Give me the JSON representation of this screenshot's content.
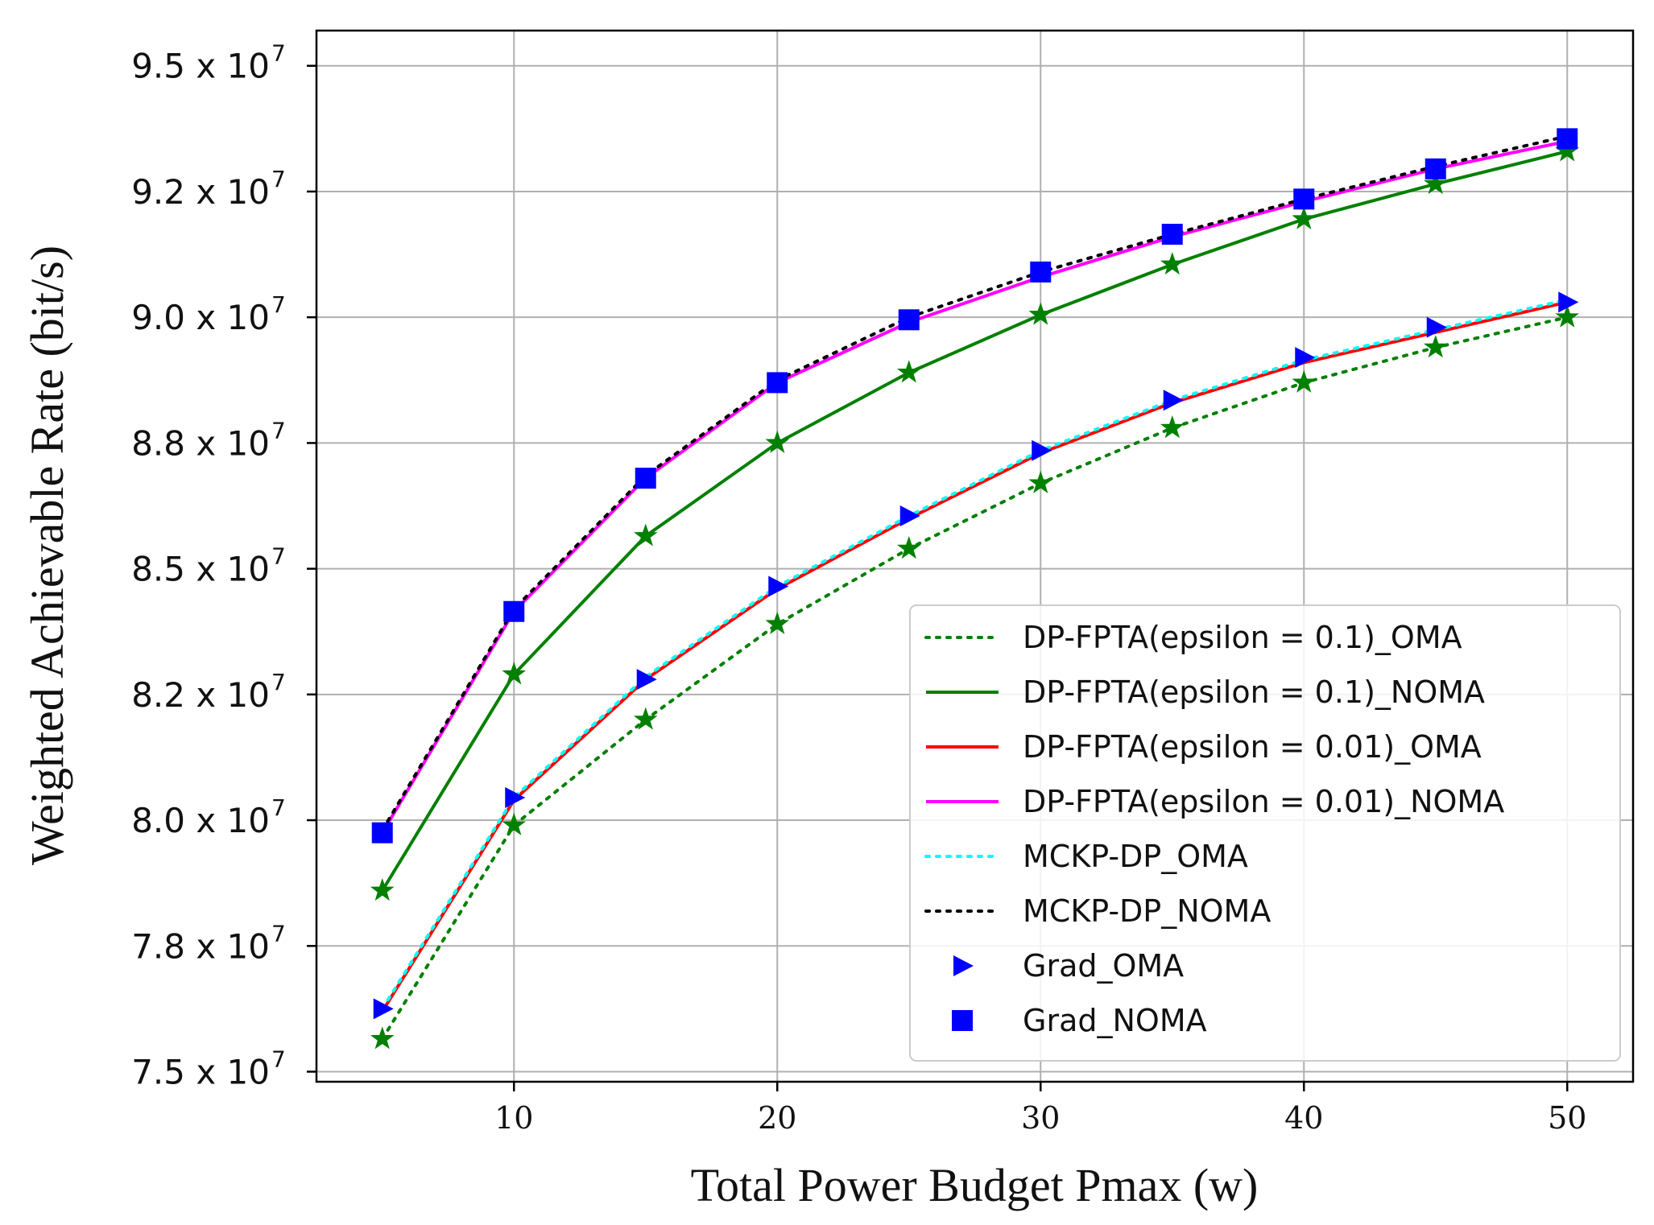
{
  "chart_data": {
    "type": "line",
    "xlabel": "Total Power Budget Pmax (w)",
    "ylabel": "Weighted Achievable Rate (bit/s)",
    "xlim": [
      2.5,
      52.5
    ],
    "ylim": [
      74800000,
      95700000
    ],
    "grid": true,
    "legend_position": "lower-right",
    "x_ticks": [
      10,
      20,
      30,
      40,
      50
    ],
    "x_tick_labels": [
      "10",
      "20",
      "30",
      "40",
      "50"
    ],
    "y_ticks": [
      75000000,
      77500000,
      80000000,
      82500000,
      85000000,
      87500000,
      90000000,
      92500000,
      95000000
    ],
    "y_tick_labels": [
      "7.5 x 10",
      "7.8 x 10",
      "8.0 x 10",
      "8.2 x 10",
      "8.5 x 10",
      "8.8 x 10",
      "9.0 x 10",
      "9.2 x 10",
      "9.5 x 10"
    ],
    "y_tick_exponent": "7",
    "x": [
      5,
      10,
      15,
      20,
      25,
      30,
      35,
      40,
      45,
      50
    ],
    "series": [
      {
        "name": "DP-FPTA(epsilon = 0.1)_OMA",
        "color": "#008000",
        "line": "dotted",
        "marker": "star",
        "values": [
          75650000,
          79900000,
          82000000,
          83900000,
          85400000,
          86700000,
          87800000,
          88700000,
          89400000,
          90000000
        ]
      },
      {
        "name": "DP-FPTA(epsilon = 0.1)_NOMA",
        "color": "#008000",
        "line": "solid",
        "marker": "star",
        "values": [
          78600000,
          82900000,
          85650000,
          87500000,
          88900000,
          90050000,
          91050000,
          91950000,
          92650000,
          93300000
        ]
      },
      {
        "name": "DP-FPTA(epsilon = 0.01)_OMA",
        "color": "#ff0000",
        "line": "solid",
        "marker": "none",
        "values": [
          76200000,
          80400000,
          82800000,
          84600000,
          86000000,
          87300000,
          88300000,
          89100000,
          89700000,
          90300000
        ]
      },
      {
        "name": "DP-FPTA(epsilon = 0.01)_NOMA",
        "color": "#ff00ff",
        "line": "solid",
        "marker": "none",
        "values": [
          79750000,
          84150000,
          86800000,
          88700000,
          89900000,
          90800000,
          91600000,
          92300000,
          92950000,
          93500000
        ]
      },
      {
        "name": "MCKP-DP_OMA",
        "color": "#00ffff",
        "line": "dotted",
        "marker": "none",
        "values": [
          76250000,
          80450000,
          82850000,
          84650000,
          86050000,
          87350000,
          88350000,
          89150000,
          89750000,
          90350000
        ]
      },
      {
        "name": "MCKP-DP_NOMA",
        "color": "#000000",
        "line": "dotted",
        "marker": "none",
        "values": [
          79800000,
          84200000,
          86850000,
          88750000,
          90000000,
          90900000,
          91650000,
          92350000,
          93000000,
          93600000
        ]
      },
      {
        "name": "Grad_OMA",
        "color": "#0000ff",
        "line": "none",
        "marker": "triangle-right",
        "values": [
          76250000,
          80450000,
          82800000,
          84650000,
          86050000,
          87350000,
          88350000,
          89200000,
          89800000,
          90300000
        ]
      },
      {
        "name": "Grad_NOMA",
        "color": "#0000ff",
        "line": "none",
        "marker": "square",
        "values": [
          79750000,
          84150000,
          86800000,
          88700000,
          89950000,
          90900000,
          91650000,
          92350000,
          92950000,
          93550000
        ]
      }
    ]
  }
}
